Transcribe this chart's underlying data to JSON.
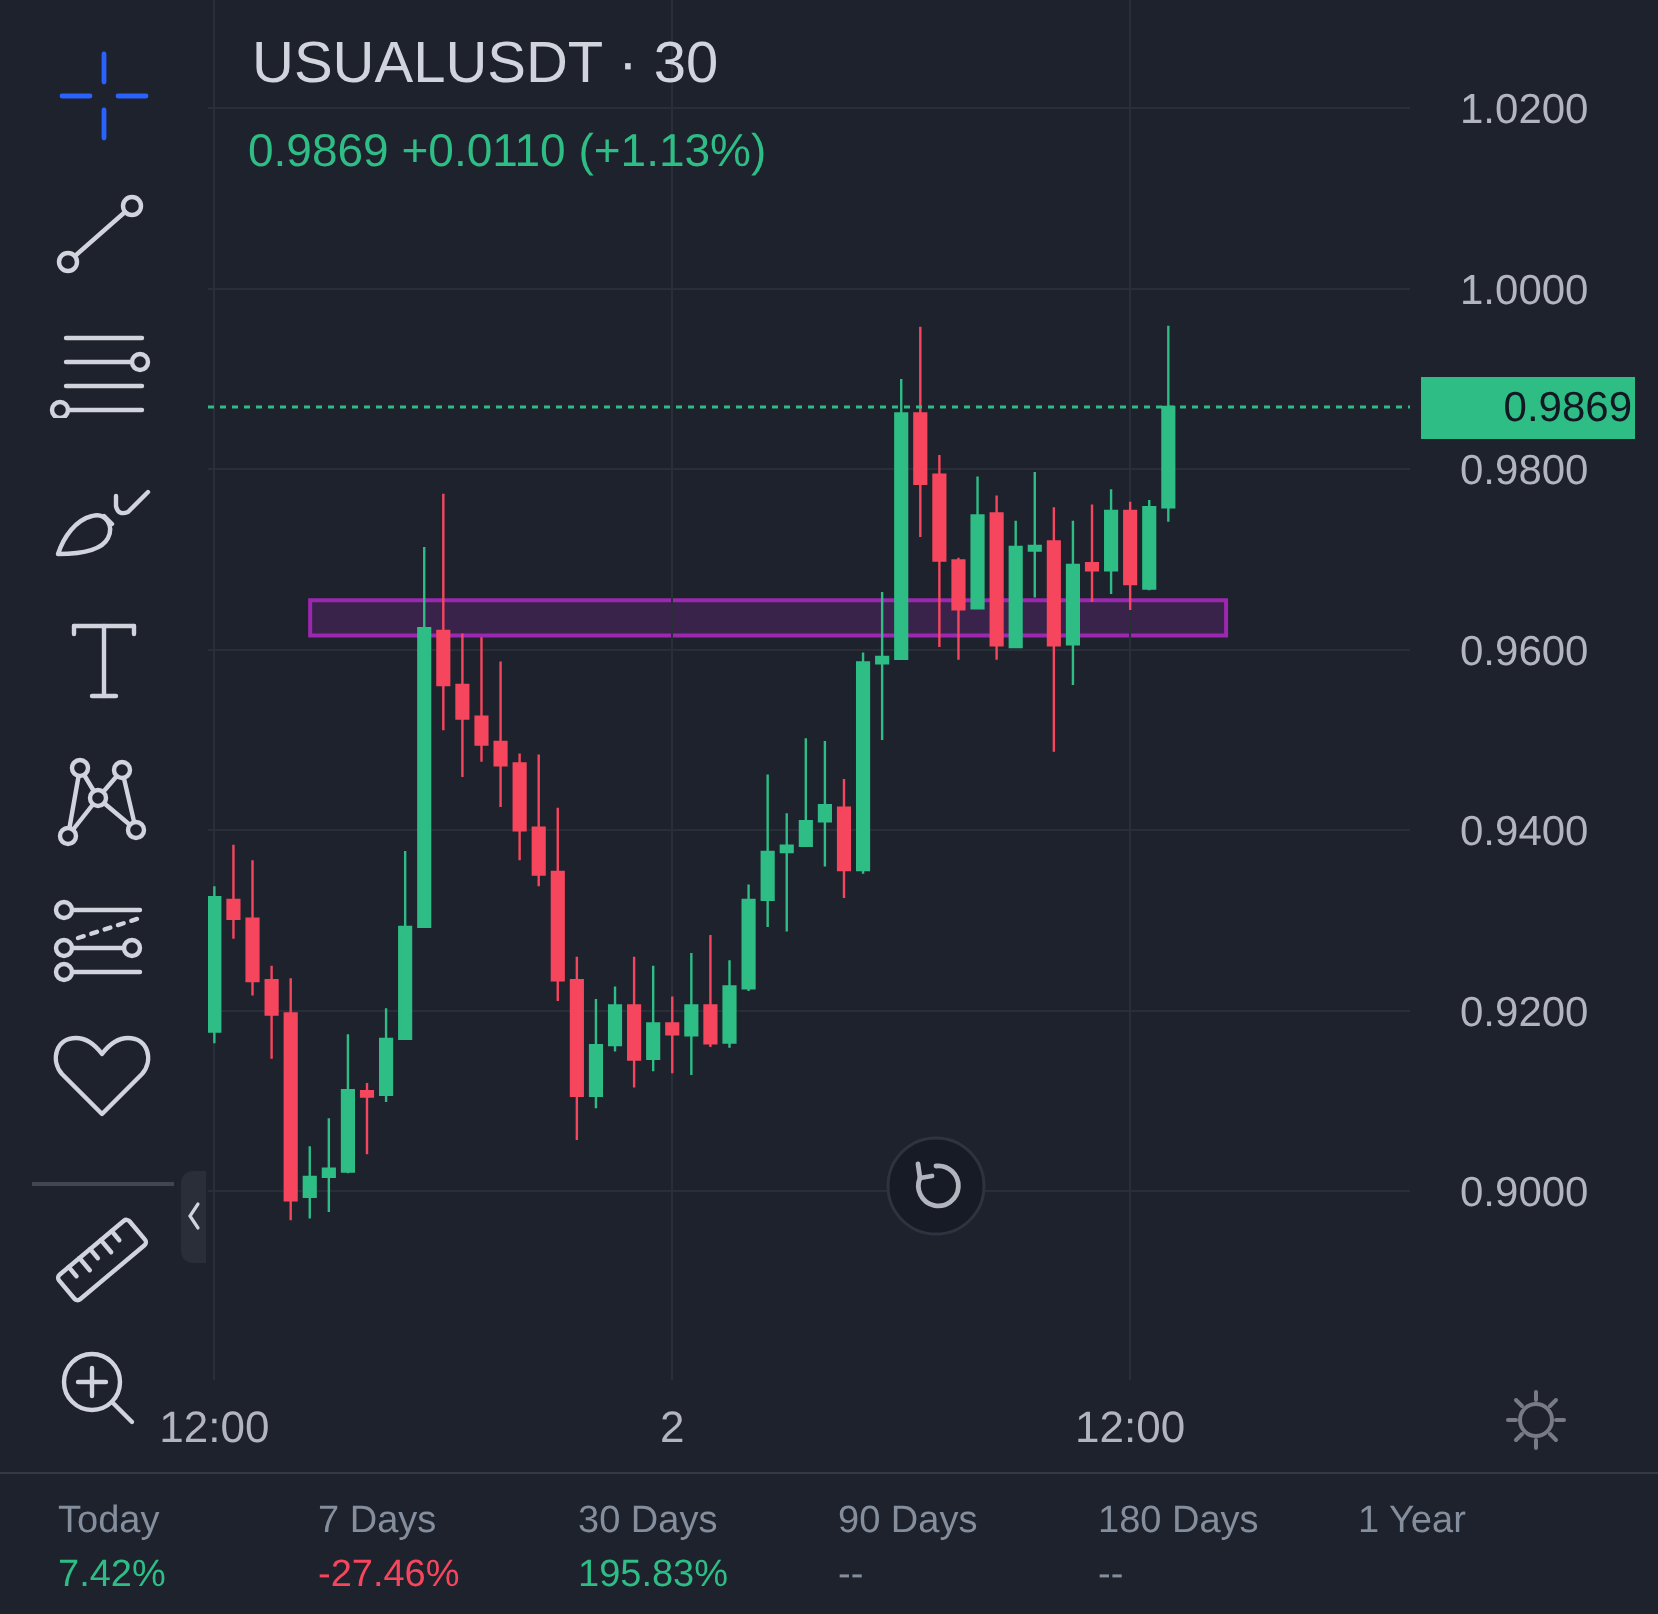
{
  "chart_data": {
    "type": "candlestick",
    "title": "USUALUSDT · 30",
    "subtitle": "0.9869 +0.0110 (+1.13%)",
    "x": [
      "--01-01T12:00",
      "--01-01T12:30",
      "--01-01T13:00",
      "--01-01T13:30",
      "--01-01T14:00",
      "--01-01T14:30",
      "--01-01T15:00",
      "--01-01T15:30",
      "--01-01T16:00",
      "--01-01T16:30",
      "--01-01T17:00",
      "--01-01T17:30",
      "--01-01T18:00",
      "--01-01T18:30",
      "--01-01T19:00",
      "--01-01T19:30",
      "--01-01T20:00",
      "--01-01T20:30",
      "--01-01T21:00",
      "--01-01T21:30",
      "--01-01T22:00",
      "--01-01T22:30",
      "--01-01T23:00",
      "--01-01T23:30",
      "--01-02T00:00",
      "--01-02T00:30",
      "--01-02T01:00",
      "--01-02T01:30",
      "--01-02T02:00",
      "--01-02T02:30",
      "--01-02T03:00",
      "--01-02T03:30",
      "--01-02T04:00",
      "--01-02T04:30",
      "--01-02T05:00",
      "--01-02T05:30",
      "--01-02T06:00",
      "--01-02T06:30",
      "--01-02T07:00",
      "--01-02T07:30",
      "--01-02T08:00",
      "--01-02T08:30",
      "--01-02T09:00",
      "--01-02T09:30",
      "--01-02T10:00",
      "--01-02T10:30",
      "--01-02T11:00",
      "--01-02T11:30",
      "--01-02T12:00",
      "--01-02T12:30",
      "--01-02T13:00"
    ],
    "ohlc": [
      [
        0.9177,
        0.9338,
        0.9164,
        0.9326
      ],
      [
        0.9323,
        0.9384,
        0.928,
        0.9302
      ],
      [
        0.9302,
        0.9367,
        0.9217,
        0.9233
      ],
      [
        0.9234,
        0.925,
        0.9147,
        0.9196
      ],
      [
        0.9197,
        0.9236,
        0.8968,
        0.899
      ],
      [
        0.8994,
        0.905,
        0.897,
        0.9016
      ],
      [
        0.9016,
        0.9081,
        0.8977,
        0.9025
      ],
      [
        0.9022,
        0.9174,
        0.902,
        0.9112
      ],
      [
        0.9111,
        0.912,
        0.9041,
        0.9105
      ],
      [
        0.9107,
        0.9203,
        0.9099,
        0.9169
      ],
      [
        0.9169,
        0.9377,
        0.9169,
        0.9293
      ],
      [
        0.9293,
        0.9714,
        0.9293,
        0.9624
      ],
      [
        0.9621,
        0.9773,
        0.9511,
        0.9561
      ],
      [
        0.9561,
        0.9618,
        0.9459,
        0.9524
      ],
      [
        0.9526,
        0.9614,
        0.9476,
        0.9495
      ],
      [
        0.9498,
        0.9587,
        0.9426,
        0.9472
      ],
      [
        0.9474,
        0.9485,
        0.9367,
        0.94
      ],
      [
        0.9403,
        0.9484,
        0.9338,
        0.9351
      ],
      [
        0.9354,
        0.9425,
        0.9211,
        0.9234
      ],
      [
        0.9234,
        0.926,
        0.9057,
        0.9106
      ],
      [
        0.9106,
        0.9213,
        0.9092,
        0.9162
      ],
      [
        0.9162,
        0.9227,
        0.9155,
        0.9206
      ],
      [
        0.9206,
        0.926,
        0.9115,
        0.9146
      ],
      [
        0.9147,
        0.925,
        0.9133,
        0.9186
      ],
      [
        0.9186,
        0.9216,
        0.9131,
        0.9174
      ],
      [
        0.9173,
        0.9264,
        0.9129,
        0.9206
      ],
      [
        0.9206,
        0.9284,
        0.916,
        0.9164
      ],
      [
        0.9165,
        0.9256,
        0.9159,
        0.9227
      ],
      [
        0.9225,
        0.934,
        0.9222,
        0.9323
      ],
      [
        0.9323,
        0.9462,
        0.9293,
        0.9376
      ],
      [
        0.9376,
        0.9419,
        0.9288,
        0.9383
      ],
      [
        0.9383,
        0.9502,
        0.9383,
        0.941
      ],
      [
        0.941,
        0.9499,
        0.936,
        0.9428
      ],
      [
        0.9425,
        0.9457,
        0.9325,
        0.9356
      ],
      [
        0.9356,
        0.9597,
        0.9352,
        0.9586
      ],
      [
        0.9585,
        0.9664,
        0.95,
        0.9592
      ],
      [
        0.959,
        0.99,
        0.9589,
        0.9862
      ],
      [
        0.9862,
        0.9958,
        0.9725,
        0.9784
      ],
      [
        0.9794,
        0.9816,
        0.9603,
        0.9699
      ],
      [
        0.9699,
        0.9702,
        0.9589,
        0.9645
      ],
      [
        0.9646,
        0.9792,
        0.9646,
        0.9749
      ],
      [
        0.9751,
        0.9771,
        0.9589,
        0.9605
      ],
      [
        0.9603,
        0.9743,
        0.9602,
        0.9714
      ],
      [
        0.971,
        0.9797,
        0.9658,
        0.9715
      ],
      [
        0.972,
        0.9758,
        0.9487,
        0.9605
      ],
      [
        0.9606,
        0.9743,
        0.9561,
        0.9694
      ],
      [
        0.9696,
        0.9761,
        0.9653,
        0.9688
      ],
      [
        0.9688,
        0.9778,
        0.9662,
        0.9754
      ],
      [
        0.9754,
        0.9764,
        0.9644,
        0.9673
      ],
      [
        0.9668,
        0.9766,
        0.9666,
        0.9758
      ],
      [
        0.9758,
        0.9959,
        0.9742,
        0.9869
      ]
    ],
    "colors": [
      "#2ebd85",
      "#f6465d",
      "#f6465d",
      "#f6465d",
      "#f6465d",
      "#2ebd85",
      "#2ebd85",
      "#2ebd85",
      "#f6465d",
      "#2ebd85",
      "#2ebd85",
      "#2ebd85",
      "#f6465d",
      "#f6465d",
      "#f6465d",
      "#f6465d",
      "#f6465d",
      "#f6465d",
      "#f6465d",
      "#f6465d",
      "#2ebd85",
      "#2ebd85",
      "#f6465d",
      "#2ebd85",
      "#f6465d",
      "#2ebd85",
      "#f6465d",
      "#2ebd85",
      "#2ebd85",
      "#2ebd85",
      "#2ebd85",
      "#2ebd85",
      "#2ebd85",
      "#f6465d",
      "#2ebd85",
      "#2ebd85",
      "#2ebd85",
      "#f6465d",
      "#f6465d",
      "#f6465d",
      "#2ebd85",
      "#f6465d",
      "#2ebd85",
      "#2ebd85",
      "#f6465d",
      "#2ebd85",
      "#f6465d",
      "#2ebd85",
      "#f6465d",
      "#2ebd85",
      "#2ebd85"
    ],
    "xlim": [
      "--01-01T11:50",
      "--01-02T19:20"
    ],
    "xticks": [
      {
        "value": "--01-01T12:00",
        "label": "12:00"
      },
      {
        "value": "--01-02",
        "label": "2"
      },
      {
        "value": "--01-02T12:00",
        "label": "12:00"
      }
    ],
    "ylim": [
      0.8791,
      1.032
    ],
    "yticks": [
      {
        "value": 0.9,
        "label": "0.9000"
      },
      {
        "value": 0.92,
        "label": "0.9200"
      },
      {
        "value": 0.94,
        "label": "0.9400"
      },
      {
        "value": 0.96,
        "label": "0.9600"
      },
      {
        "value": 0.98,
        "label": "0.9800"
      },
      {
        "value": 1,
        "label": "1.0000"
      },
      {
        "value": 1.02,
        "label": "1.0200"
      }
    ],
    "grid": true,
    "ref_lines": [
      {
        "axis": "y",
        "value": 0.9869,
        "label": "0.9869",
        "color": "#2ebd85",
        "line_style": "dotted"
      }
    ],
    "bands": [
      {
        "axis": "y",
        "from": 0.9616,
        "to": 0.9655,
        "color": "#9c27b0"
      }
    ],
    "annotations": [
      "Today",
      "7.42%",
      "7 Days",
      "-27.46%",
      "30 Days",
      "195.83%",
      "90 Days",
      "--",
      "180 Days",
      "--",
      "1 Year"
    ]
  }
}
